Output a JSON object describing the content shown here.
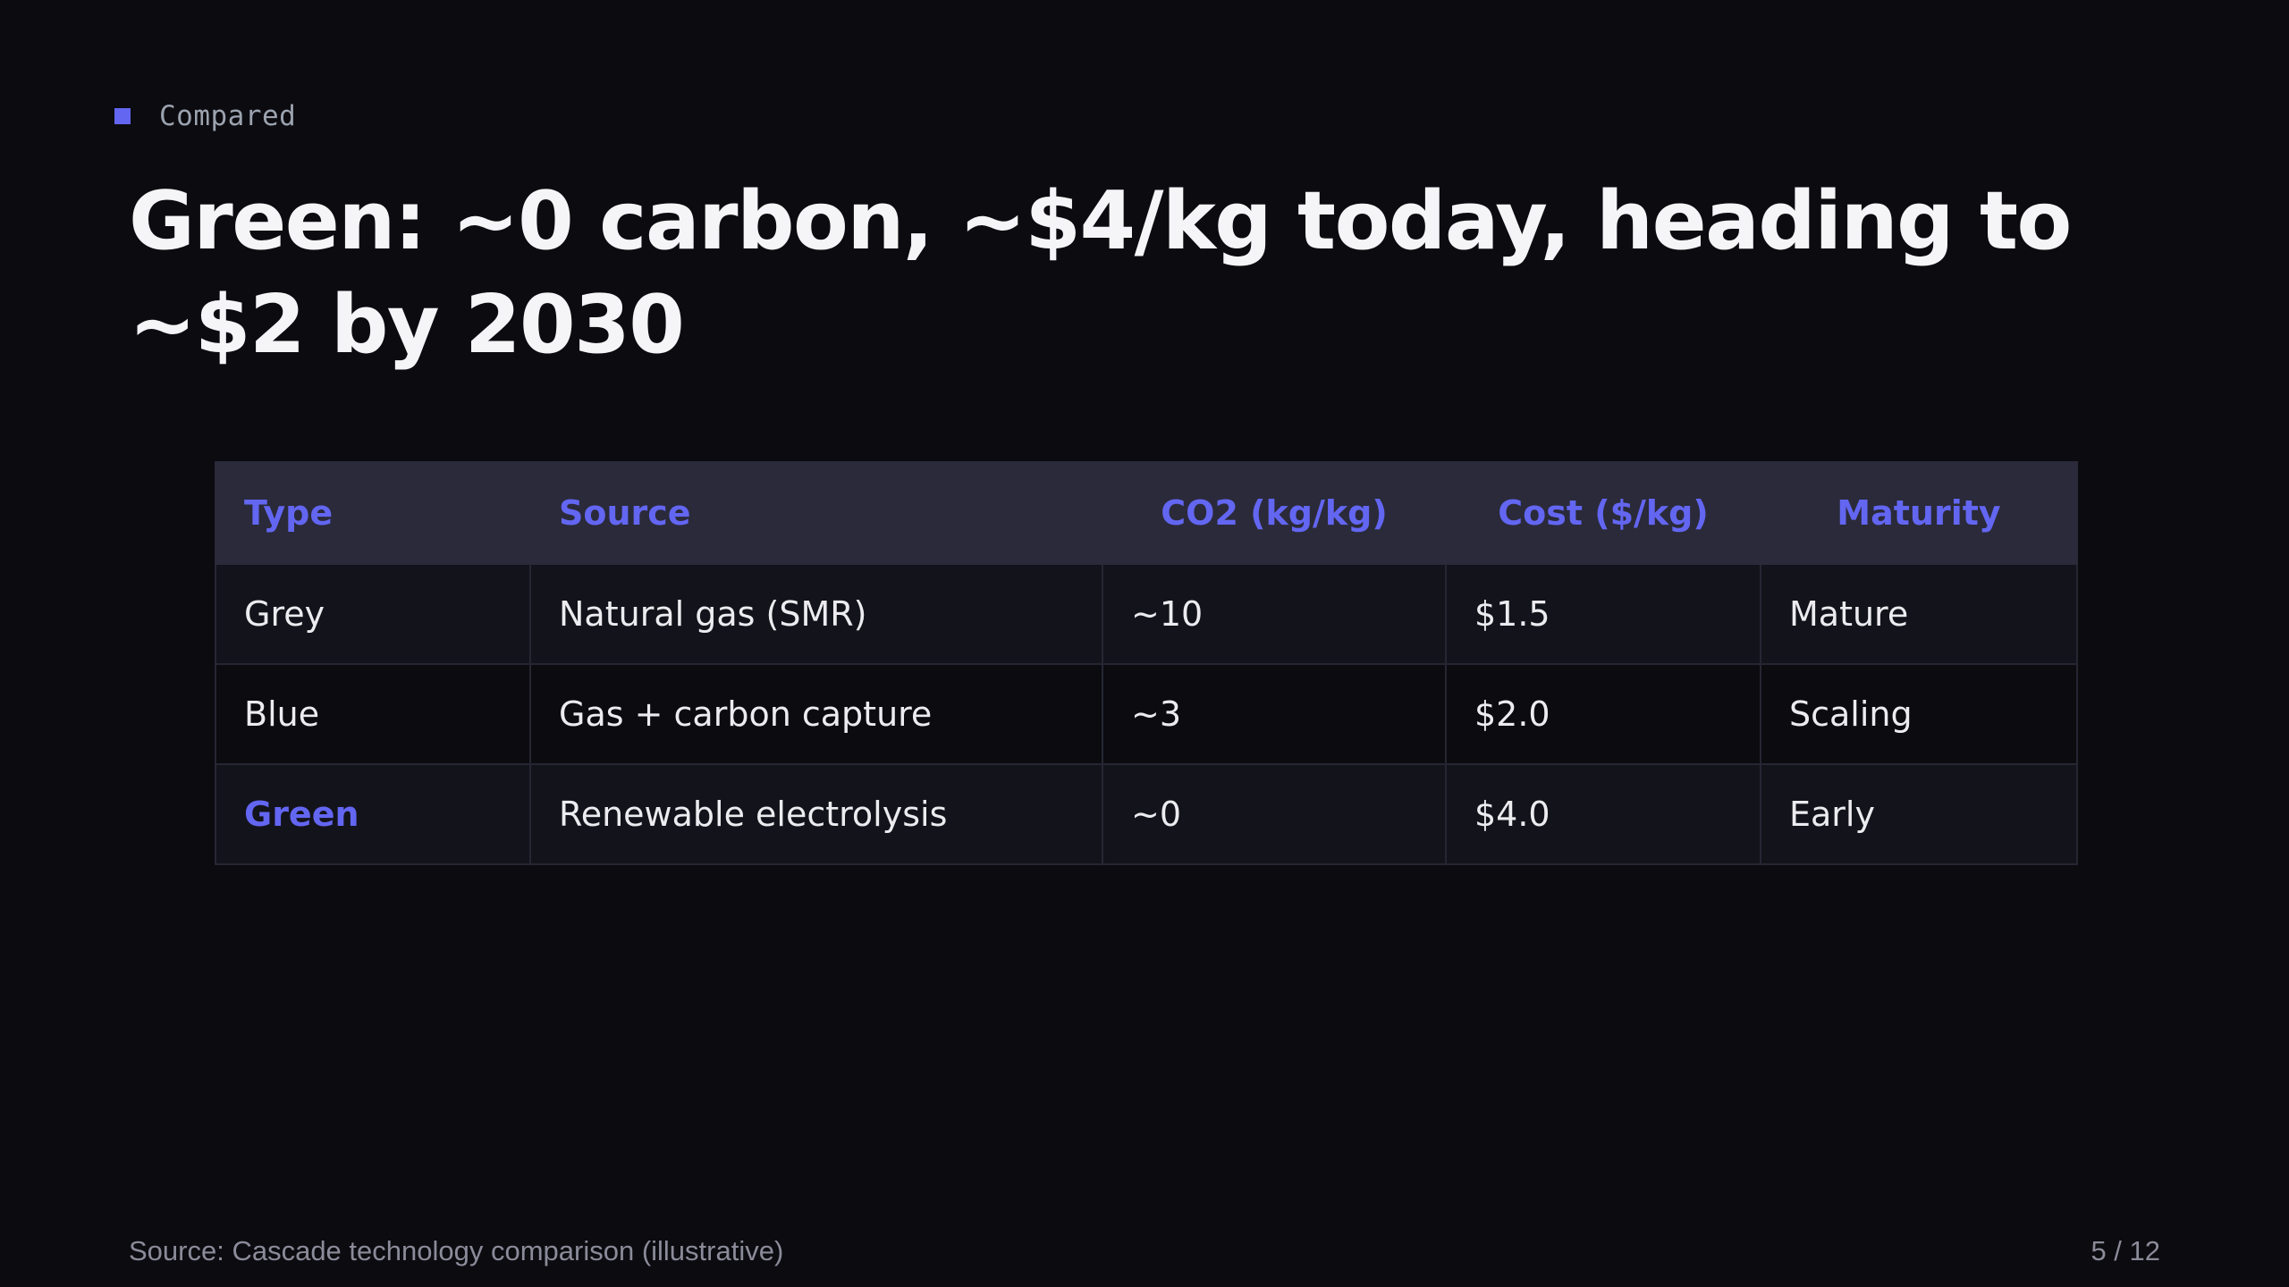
{
  "kicker": "Compared",
  "title": "Green: ~0 carbon, ~$4/kg today, heading to ~$2 by 2030",
  "table": {
    "headers": [
      "Type",
      "Source",
      "CO2 (kg/kg)",
      "Cost ($/kg)",
      "Maturity"
    ],
    "rows": [
      [
        "Grey",
        "Natural gas (SMR)",
        "~10",
        "$1.5",
        "Mature"
      ],
      [
        "Blue",
        "Gas + carbon capture",
        "~3",
        "$2.0",
        "Scaling"
      ],
      [
        "Green",
        "Renewable electrolysis",
        "~0",
        "$4.0",
        "Early"
      ]
    ]
  },
  "footer": {
    "source": "Source: Cascade technology comparison (illustrative)",
    "page": "5 / 12"
  },
  "colors": {
    "accent": "#6366f1",
    "background": "#0b0b10",
    "header_bg": "#2a2a3a"
  }
}
